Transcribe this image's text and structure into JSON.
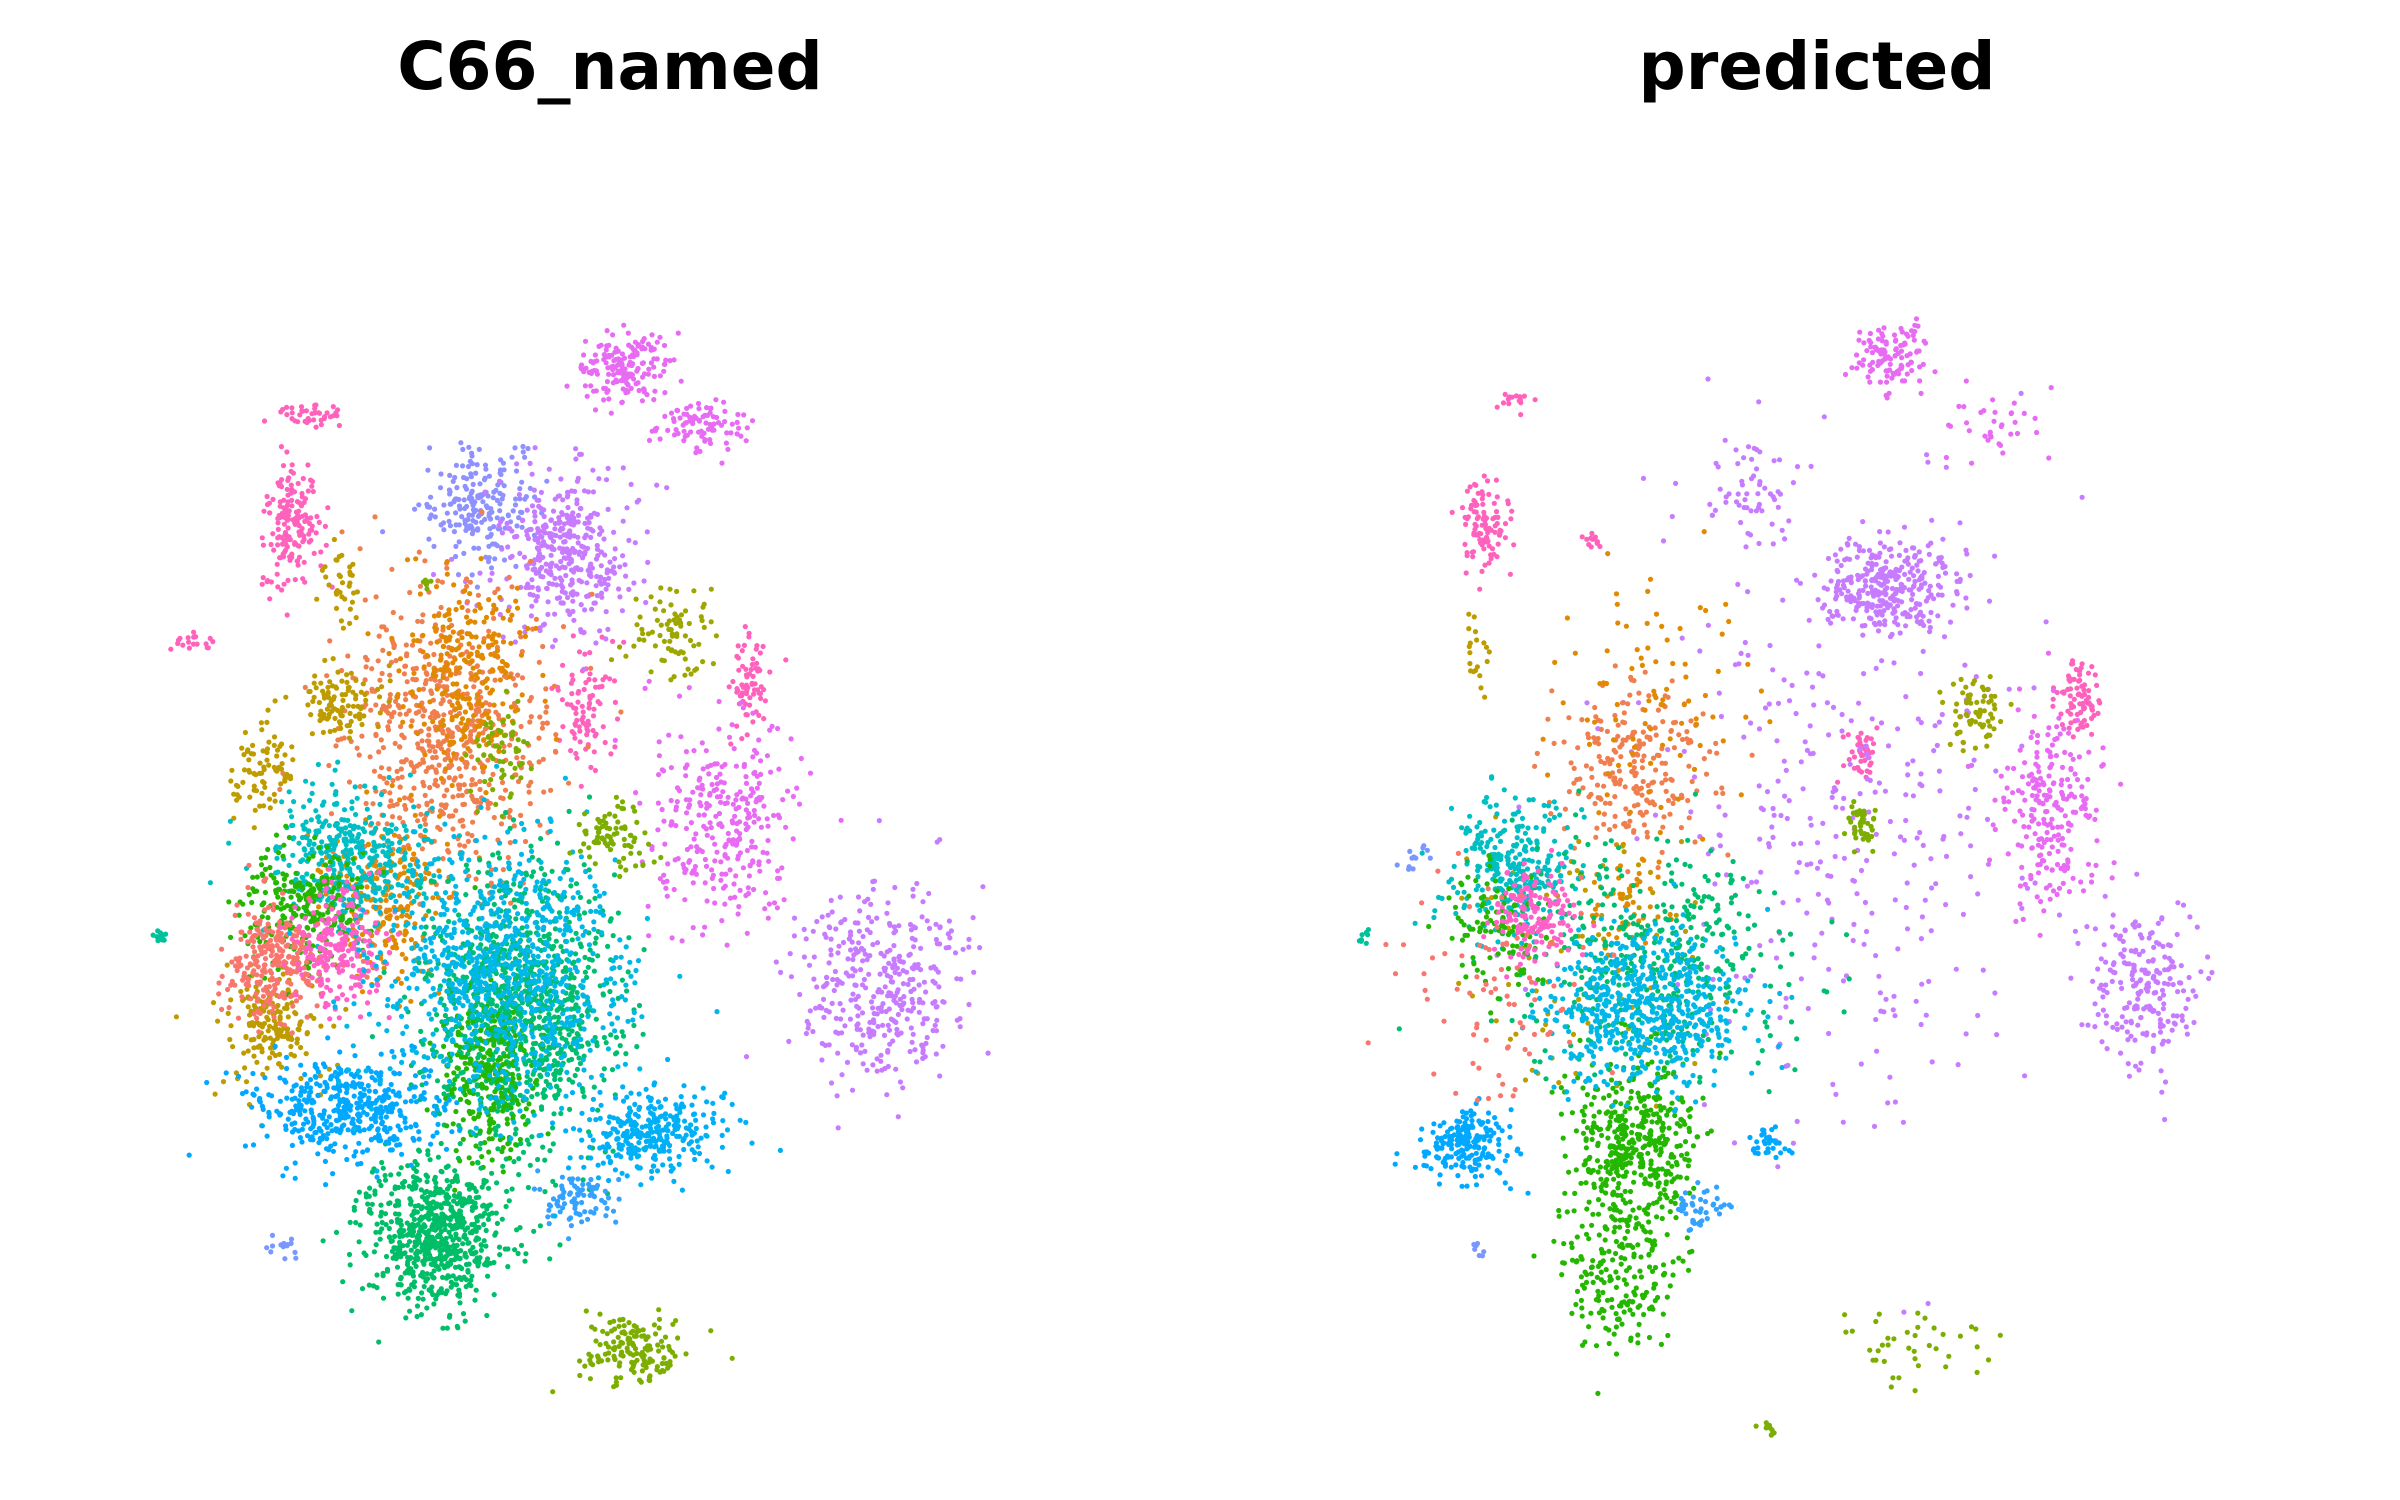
{
  "chart_data": [
    {
      "type": "scatter",
      "title": "C66_named",
      "xlabel": "",
      "ylabel": "",
      "grid": false,
      "axes_visible": false,
      "legend": "none",
      "xlim": [
        0,
        100
      ],
      "ylim": [
        0,
        100
      ],
      "clusters": [
        {
          "color": "#E76BF3",
          "x": 51,
          "y": 87,
          "sx": 2.2,
          "sy": 1.6,
          "n": 170
        },
        {
          "color": "#E76BF3",
          "x": 59,
          "y": 82,
          "sx": 2.5,
          "sy": 1.2,
          "n": 90
        },
        {
          "color": "#FF62BC",
          "x": 18,
          "y": 83,
          "sx": 1.8,
          "sy": 0.5,
          "n": 40
        },
        {
          "color": "#FF62BC",
          "x": 16,
          "y": 73,
          "sx": 1.5,
          "sy": 2.6,
          "n": 170
        },
        {
          "color": "#FF62BC",
          "x": 5,
          "y": 63,
          "sx": 1.0,
          "sy": 0.4,
          "n": 18
        },
        {
          "color": "#FF62BC",
          "x": 47,
          "y": 57,
          "sx": 1.5,
          "sy": 2.8,
          "n": 90
        },
        {
          "color": "#FF62BC",
          "x": 64,
          "y": 60,
          "sx": 1.2,
          "sy": 2.4,
          "n": 70
        },
        {
          "color": "#8F91FF",
          "x": 36,
          "y": 75,
          "sx": 3.0,
          "sy": 2.5,
          "n": 210
        },
        {
          "color": "#C77CFF",
          "x": 45,
          "y": 71,
          "sx": 3.6,
          "sy": 3.4,
          "n": 380
        },
        {
          "color": "#C77CFF",
          "x": 78,
          "y": 33,
          "sx": 4.5,
          "sy": 4.5,
          "n": 380
        },
        {
          "color": "#E76BF3",
          "x": 61,
          "y": 47,
          "sx": 3.6,
          "sy": 4.6,
          "n": 300
        },
        {
          "color": "#F07F4F",
          "x": 32,
          "y": 55,
          "sx": 5.5,
          "sy": 6.5,
          "n": 650
        },
        {
          "color": "#E18A00",
          "x": 34,
          "y": 60,
          "sx": 3.5,
          "sy": 4.5,
          "n": 260
        },
        {
          "color": "#E18A00",
          "x": 26,
          "y": 40,
          "sx": 3.0,
          "sy": 3.5,
          "n": 220
        },
        {
          "color": "#BE9C00",
          "x": 14,
          "y": 29,
          "sx": 2.5,
          "sy": 2.5,
          "n": 170
        },
        {
          "color": "#BE9C00",
          "x": 21,
          "y": 58,
          "sx": 2.2,
          "sy": 1.5,
          "n": 100
        },
        {
          "color": "#BE9C00",
          "x": 13,
          "y": 52,
          "sx": 1.5,
          "sy": 2.2,
          "n": 80
        },
        {
          "color": "#BE9C00",
          "x": 21,
          "y": 68,
          "sx": 1.0,
          "sy": 1.5,
          "n": 35
        },
        {
          "color": "#00BE70",
          "x": 40,
          "y": 31,
          "sx": 5.0,
          "sy": 6.0,
          "n": 1000
        },
        {
          "color": "#00BFC4",
          "x": 22,
          "y": 44,
          "sx": 4.0,
          "sy": 3.0,
          "n": 400
        },
        {
          "color": "#24B700",
          "x": 17,
          "y": 39,
          "sx": 3.0,
          "sy": 2.5,
          "n": 260
        },
        {
          "color": "#24B700",
          "x": 37,
          "y": 25,
          "sx": 2.5,
          "sy": 4.0,
          "n": 260
        },
        {
          "color": "#00BE67",
          "x": 31,
          "y": 11,
          "sx": 3.8,
          "sy": 3.2,
          "n": 700
        },
        {
          "color": "#F8766D",
          "x": 14,
          "y": 35,
          "sx": 2.5,
          "sy": 2.5,
          "n": 260
        },
        {
          "color": "#FF61C9",
          "x": 21,
          "y": 36,
          "sx": 2.5,
          "sy": 2.5,
          "n": 220
        },
        {
          "color": "#00A9FF",
          "x": 22,
          "y": 22,
          "sx": 5.0,
          "sy": 2.2,
          "n": 440
        },
        {
          "color": "#00B0F6",
          "x": 54,
          "y": 20,
          "sx": 4.0,
          "sy": 1.8,
          "n": 300
        },
        {
          "color": "#35A2FF",
          "x": 46,
          "y": 14,
          "sx": 2.0,
          "sy": 1.2,
          "n": 80
        },
        {
          "color": "#00B8E7",
          "x": 38,
          "y": 34,
          "sx": 6.5,
          "sy": 5.5,
          "n": 900
        },
        {
          "color": "#7CAE00",
          "x": 50,
          "y": 46,
          "sx": 2.0,
          "sy": 1.5,
          "n": 80
        },
        {
          "color": "#9EA700",
          "x": 56,
          "y": 64,
          "sx": 2.0,
          "sy": 1.8,
          "n": 80
        },
        {
          "color": "#7CAE00",
          "x": 52,
          "y": 1,
          "sx": 3.0,
          "sy": 1.5,
          "n": 150
        },
        {
          "color": "#7CAE00",
          "x": 38,
          "y": 53,
          "sx": 1.5,
          "sy": 2.0,
          "n": 55
        },
        {
          "color": "#00C19A",
          "x": 2,
          "y": 37,
          "sx": 0.5,
          "sy": 0.4,
          "n": 14
        },
        {
          "color": "#7997FF",
          "x": 15,
          "y": 10,
          "sx": 1.0,
          "sy": 0.8,
          "n": 14
        },
        {
          "color": "#7CAE00",
          "x": 30,
          "y": 68,
          "sx": 0.4,
          "sy": 0.4,
          "n": 6
        }
      ]
    },
    {
      "type": "scatter",
      "title": "predicted",
      "xlabel": "",
      "ylabel": "",
      "grid": false,
      "axes_visible": false,
      "legend": "none",
      "xlim": [
        0,
        100
      ],
      "ylim": [
        0,
        100
      ],
      "clusters": [
        {
          "color": "#E76BF3",
          "x": 58,
          "y": 88,
          "sx": 2.0,
          "sy": 1.3,
          "n": 120
        },
        {
          "color": "#E76BF3",
          "x": 69,
          "y": 82,
          "sx": 3.0,
          "sy": 1.5,
          "n": 35
        },
        {
          "color": "#FF62BC",
          "x": 18,
          "y": 84,
          "sx": 1.0,
          "sy": 0.4,
          "n": 15
        },
        {
          "color": "#FF62BC",
          "x": 15,
          "y": 73,
          "sx": 1.3,
          "sy": 2.2,
          "n": 100
        },
        {
          "color": "#FF62BC",
          "x": 26,
          "y": 72,
          "sx": 0.5,
          "sy": 0.4,
          "n": 12
        },
        {
          "color": "#FF62BC",
          "x": 78,
          "y": 58,
          "sx": 1.2,
          "sy": 1.8,
          "n": 80
        },
        {
          "color": "#FF62BC",
          "x": 55,
          "y": 53,
          "sx": 1.0,
          "sy": 1.2,
          "n": 45
        },
        {
          "color": "#C77CFF",
          "x": 58,
          "y": 68,
          "sx": 3.5,
          "sy": 2.0,
          "n": 300
        },
        {
          "color": "#C77CFF",
          "x": 43,
          "y": 76,
          "sx": 3.0,
          "sy": 2.0,
          "n": 60
        },
        {
          "color": "#C77CFF",
          "x": 53,
          "y": 48,
          "sx": 10.0,
          "sy": 14.0,
          "n": 360
        },
        {
          "color": "#C77CFF",
          "x": 85,
          "y": 33,
          "sx": 3.0,
          "sy": 3.5,
          "n": 220
        },
        {
          "color": "#E76BF3",
          "x": 75,
          "y": 48,
          "sx": 2.5,
          "sy": 4.0,
          "n": 230
        },
        {
          "color": "#F07F4F",
          "x": 31,
          "y": 52,
          "sx": 4.0,
          "sy": 3.5,
          "n": 230
        },
        {
          "color": "#E18A00",
          "x": 33,
          "y": 58,
          "sx": 5.5,
          "sy": 6.0,
          "n": 90
        },
        {
          "color": "#E18A00",
          "x": 30,
          "y": 40,
          "sx": 2.0,
          "sy": 2.5,
          "n": 60
        },
        {
          "color": "#BE9C00",
          "x": 24,
          "y": 35,
          "sx": 6.0,
          "sy": 6.5,
          "n": 80
        },
        {
          "color": "#BE9C00",
          "x": 14,
          "y": 62,
          "sx": 1.0,
          "sy": 2.0,
          "n": 20
        },
        {
          "color": "#9EA700",
          "x": 67,
          "y": 57,
          "sx": 1.5,
          "sy": 1.8,
          "n": 70
        },
        {
          "color": "#7CAE00",
          "x": 55,
          "y": 47,
          "sx": 1.0,
          "sy": 1.0,
          "n": 40
        },
        {
          "color": "#7CAE00",
          "x": 60,
          "y": 1,
          "sx": 4.5,
          "sy": 1.5,
          "n": 40
        },
        {
          "color": "#7CAE00",
          "x": 45,
          "y": -6,
          "sx": 0.6,
          "sy": 0.3,
          "n": 10
        },
        {
          "color": "#00BFC4",
          "x": 18,
          "y": 43,
          "sx": 3.5,
          "sy": 3.0,
          "n": 300
        },
        {
          "color": "#00BE70",
          "x": 33,
          "y": 35,
          "sx": 7.0,
          "sy": 5.0,
          "n": 420
        },
        {
          "color": "#24B700",
          "x": 31,
          "y": 19,
          "sx": 3.5,
          "sy": 3.5,
          "n": 420
        },
        {
          "color": "#24B700",
          "x": 29,
          "y": 8,
          "sx": 3.0,
          "sy": 3.5,
          "n": 220
        },
        {
          "color": "#24B700",
          "x": 16,
          "y": 38,
          "sx": 2.5,
          "sy": 3.0,
          "n": 100
        },
        {
          "color": "#00B8E7",
          "x": 32,
          "y": 31,
          "sx": 5.5,
          "sy": 3.5,
          "n": 600
        },
        {
          "color": "#00A9FF",
          "x": 13,
          "y": 19,
          "sx": 2.5,
          "sy": 1.5,
          "n": 200
        },
        {
          "color": "#00A9FF",
          "x": 45,
          "y": 19,
          "sx": 1.0,
          "sy": 0.6,
          "n": 35
        },
        {
          "color": "#35A2FF",
          "x": 38,
          "y": 13,
          "sx": 1.5,
          "sy": 1.0,
          "n": 45
        },
        {
          "color": "#FF61C9",
          "x": 20,
          "y": 39,
          "sx": 2.0,
          "sy": 2.0,
          "n": 150
        },
        {
          "color": "#F8766D",
          "x": 16,
          "y": 32,
          "sx": 5.0,
          "sy": 5.0,
          "n": 80
        },
        {
          "color": "#00C19A",
          "x": 2,
          "y": 37,
          "sx": 0.4,
          "sy": 0.4,
          "n": 10
        },
        {
          "color": "#7997FF",
          "x": 14,
          "y": 10,
          "sx": 0.6,
          "sy": 0.5,
          "n": 8
        },
        {
          "color": "#7997FF",
          "x": 8,
          "y": 44,
          "sx": 1.0,
          "sy": 0.8,
          "n": 12
        }
      ]
    }
  ]
}
